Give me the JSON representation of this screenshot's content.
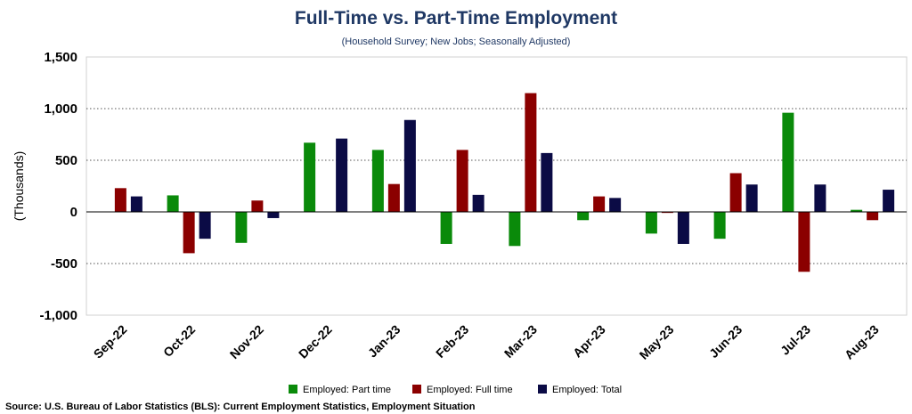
{
  "chart_data": {
    "type": "bar",
    "title": "Full-Time vs. Part-Time Employment",
    "subtitle": "(Household Survey; New Jobs; Seasonally Adjusted)",
    "ylabel": "(Thousands)",
    "xlabel": "",
    "ylim": [
      -1000,
      1500
    ],
    "yticks": [
      -1000,
      -500,
      0,
      500,
      1000,
      1500
    ],
    "ytick_labels": [
      "-1,000",
      "-500",
      "0",
      "500",
      "1,000",
      "1,500"
    ],
    "grid": "horizontal dotted",
    "legend_position": "bottom",
    "categories": [
      "Sep-22",
      "Oct-22",
      "Nov-22",
      "Dec-22",
      "Jan-23",
      "Feb-23",
      "Mar-23",
      "Apr-23",
      "May-23",
      "Jun-23",
      "Jul-23",
      "Aug-23"
    ],
    "series": [
      {
        "name": "Employed: Part time",
        "color": "#0a8a0a",
        "values": [
          0,
          160,
          -300,
          670,
          600,
          -310,
          -330,
          -80,
          -210,
          -260,
          960,
          20
        ]
      },
      {
        "name": "Employed: Full time",
        "color": "#8b0000",
        "values": [
          230,
          -400,
          110,
          0,
          270,
          600,
          1150,
          150,
          -10,
          375,
          -580,
          -80
        ]
      },
      {
        "name": "Employed: Total",
        "color": "#0b0b45",
        "values": [
          150,
          -260,
          -60,
          710,
          890,
          165,
          570,
          135,
          -310,
          265,
          265,
          215
        ]
      }
    ],
    "source": "Source: U.S. Bureau of Labor Statistics (BLS): Current Employment Statistics, Employment Situation"
  }
}
